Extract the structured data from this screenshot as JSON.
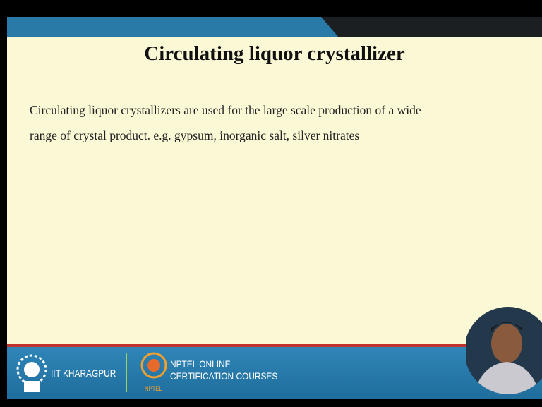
{
  "slide": {
    "title": "Circulating liquor crystallizer",
    "body_lines": [
      "Circulating liquor crystallizers are used for the large scale production of a wide",
      "range of crystal product. e.g. gypsum, inorganic salt, silver nitrates"
    ]
  },
  "footer": {
    "institute": "IIT KHARAGPUR",
    "nptel_lines": [
      "NPTEL ONLINE",
      "CERTIFICATION COURSES"
    ],
    "nptel_badge": "NPTEL"
  }
}
